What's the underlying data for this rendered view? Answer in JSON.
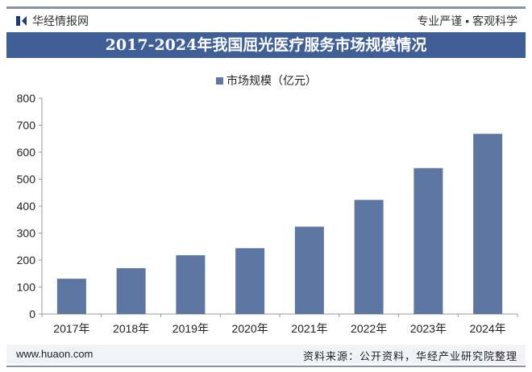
{
  "header": {
    "brand": "华经情报网",
    "slogan": "专业严谨 • 客观科学"
  },
  "title": "2017-2024年我国屈光医疗服务市场规模情况",
  "footer": {
    "site": "www.huaon.com",
    "source": "资料来源：公开资料，华经产业研究院整理"
  },
  "colors": {
    "bar": "#5e77a2",
    "title_bg": "#3f5f96"
  },
  "chart_data": {
    "type": "bar",
    "title": "2017-2024年我国屈光医疗服务市场规模情况",
    "categories": [
      "2017年",
      "2018年",
      "2019年",
      "2020年",
      "2021年",
      "2022年",
      "2023年",
      "2024年"
    ],
    "series": [
      {
        "name": "市场规模（亿元）",
        "values": [
          131,
          170,
          218,
          244,
          324,
          423,
          541,
          668
        ]
      }
    ],
    "ylim": [
      0,
      800
    ],
    "yticks": [
      0,
      100,
      200,
      300,
      400,
      500,
      600,
      700,
      800
    ],
    "grid": false,
    "legend": "top-center"
  }
}
